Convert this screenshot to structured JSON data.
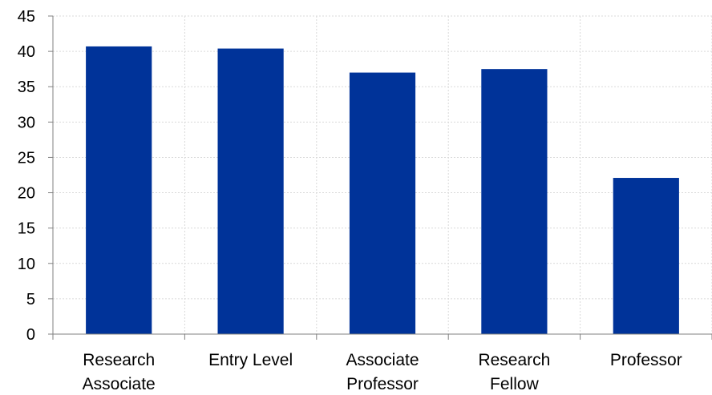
{
  "chart_data": {
    "type": "bar",
    "categories": [
      [
        "Research",
        "Associate"
      ],
      [
        "Entry Level"
      ],
      [
        "Associate",
        "Professor"
      ],
      [
        "Research",
        "Fellow"
      ],
      [
        "Professor"
      ]
    ],
    "values": [
      40.7,
      40.4,
      37.0,
      37.5,
      22.1
    ],
    "ylim": [
      0,
      45
    ],
    "yticks": [
      0,
      5,
      10,
      15,
      20,
      25,
      30,
      35,
      40,
      45
    ],
    "grid": true,
    "bar_color": "#003399",
    "grid_color": "#d9d9d9",
    "axis_color": "#808080"
  }
}
